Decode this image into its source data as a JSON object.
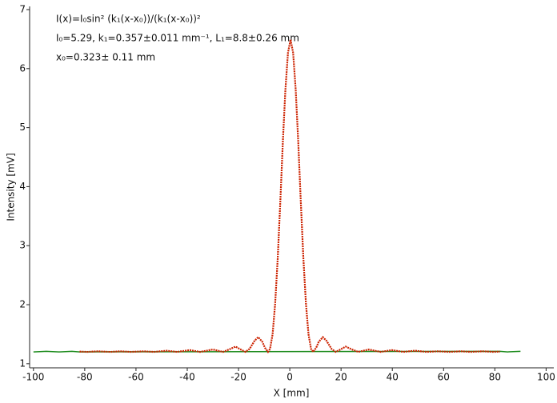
{
  "chart_data": {
    "type": "line",
    "annotations": [
      "I(x)=I₀sin² (k₁(x-x₀))/(k₁(x-x₀))²",
      "I₀=5.29,  k₁=0.357±0.011 mm⁻¹,   L₁=8.8±0.26 mm",
      "x₀=0.323±  0.11 mm"
    ],
    "xlabel": "X [mm]",
    "ylabel": "Intensity [mV]",
    "xlim": [
      -101.5,
      103
    ],
    "ylim": [
      0.93,
      7
    ],
    "xticks": [
      -100,
      -80,
      -60,
      -40,
      -20,
      0,
      20,
      40,
      60,
      80,
      100
    ],
    "yticks": [
      1,
      2,
      3,
      4,
      5,
      6,
      7
    ],
    "annotation_color": "#2a2ad0",
    "series": [
      {
        "color": "#1a8a1a",
        "x": [
          -100,
          -95,
          -90,
          -85,
          -82,
          82,
          85,
          90
        ],
        "values": [
          1.2,
          1.21,
          1.2,
          1.21,
          1.2,
          1.21,
          1.2,
          1.21
        ]
      },
      {
        "color": "#cc2200",
        "x": [
          -82,
          -79,
          -75,
          -70,
          -66,
          -62,
          -57,
          -53,
          -48,
          -44,
          -39,
          -35,
          -30,
          -26,
          -23.7,
          -21.2,
          -18.7,
          -17.3,
          -15.7,
          -13.7,
          -12.3,
          -10.7,
          -9.7,
          -8.5,
          -7.7,
          -6.7,
          -5.7,
          -4.7,
          -3.7,
          -2.7,
          -1.7,
          -0.7,
          0.3,
          1.3,
          2.3,
          3.3,
          4.3,
          5.3,
          6.3,
          7.3,
          8.3,
          9.1,
          10.3,
          11.3,
          12.9,
          14.3,
          16.3,
          17.9,
          19.3,
          21.8,
          24.3,
          26.7,
          30.8,
          35.5,
          39.8,
          44.3,
          48.8,
          53.3,
          57.8,
          62.3,
          66.8,
          70.7,
          75.3,
          79.5,
          82
        ],
        "values": [
          1.205,
          1.2,
          1.21,
          1.2,
          1.21,
          1.2,
          1.21,
          1.2,
          1.22,
          1.2,
          1.23,
          1.2,
          1.24,
          1.2,
          1.24,
          1.29,
          1.23,
          1.2,
          1.25,
          1.39,
          1.45,
          1.37,
          1.27,
          1.2,
          1.25,
          1.5,
          2.02,
          2.79,
          3.74,
          4.76,
          5.65,
          6.27,
          6.49,
          6.27,
          5.65,
          4.76,
          3.74,
          2.79,
          2.02,
          1.5,
          1.25,
          1.2,
          1.27,
          1.37,
          1.45,
          1.39,
          1.25,
          1.2,
          1.23,
          1.29,
          1.24,
          1.2,
          1.24,
          1.2,
          1.23,
          1.2,
          1.22,
          1.2,
          1.21,
          1.2,
          1.21,
          1.2,
          1.21,
          1.2,
          1.205
        ]
      }
    ]
  }
}
